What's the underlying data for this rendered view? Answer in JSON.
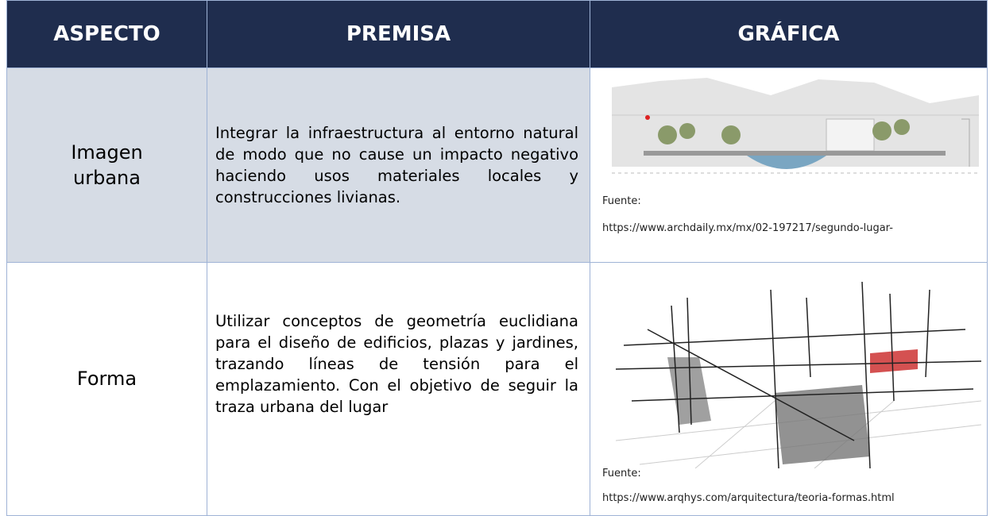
{
  "header": {
    "columns": [
      "ASPECTO",
      "PREMISA",
      "GRÁFICA"
    ]
  },
  "rows": [
    {
      "aspect": "Imagen urbana",
      "premise": "Integrar la infraestructura al entorno natural de modo que no cause un impacto negativo haciendo usos materiales locales y construcciones livianas.",
      "source_label": "Fuente:",
      "source_url": "https://www.archdaily.mx/mx/02-197217/segundo-lugar-"
    },
    {
      "aspect": "Forma",
      "premise": "Utilizar conceptos de geometría euclidiana para el diseño de edificios, plazas y jardines, trazando líneas de tensión para el emplazamiento. Con el objetivo de seguir la traza urbana del lugar",
      "source_label": "Fuente:",
      "source_url": "https://www.arqhys.com/arquitectura/teoria-formas.html"
    }
  ]
}
